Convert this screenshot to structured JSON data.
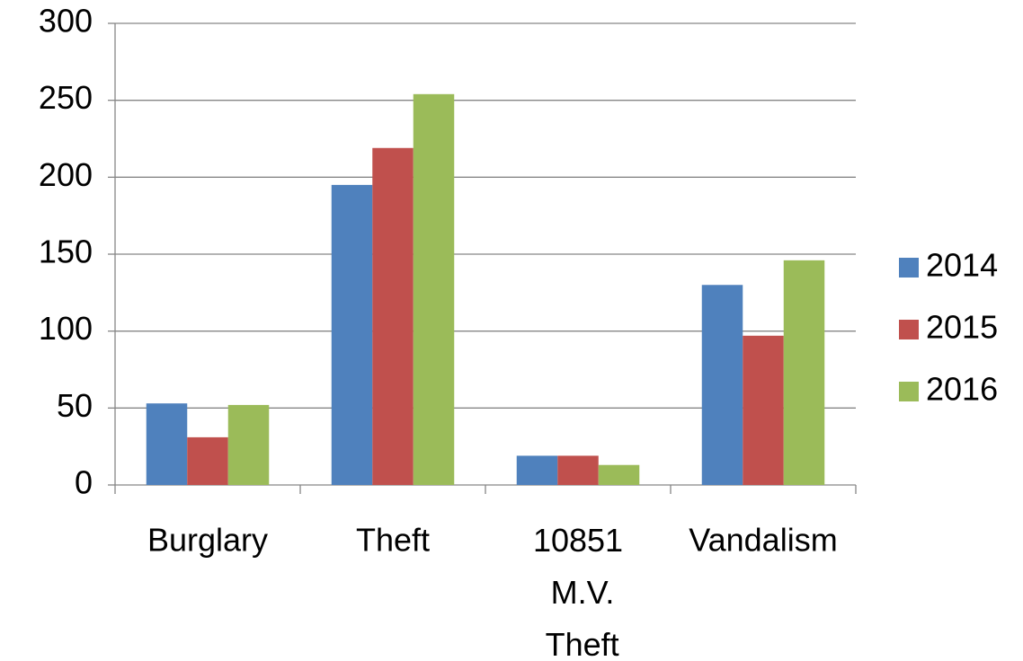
{
  "chart_data": {
    "type": "bar",
    "categories": [
      "Burglary",
      "Theft",
      "10851 M.V. Theft",
      "Vandalism"
    ],
    "series": [
      {
        "name": "2014",
        "color": "#4f81bd",
        "values": [
          53,
          195,
          19,
          130
        ]
      },
      {
        "name": "2015",
        "color": "#c0504d",
        "values": [
          31,
          219,
          19,
          97
        ]
      },
      {
        "name": "2016",
        "color": "#9bbb59",
        "values": [
          52,
          254,
          13,
          146
        ]
      }
    ],
    "ylim": [
      0,
      300
    ],
    "yticks": [
      0,
      50,
      100,
      150,
      200,
      250,
      300
    ],
    "grid": true,
    "legend": "right"
  }
}
